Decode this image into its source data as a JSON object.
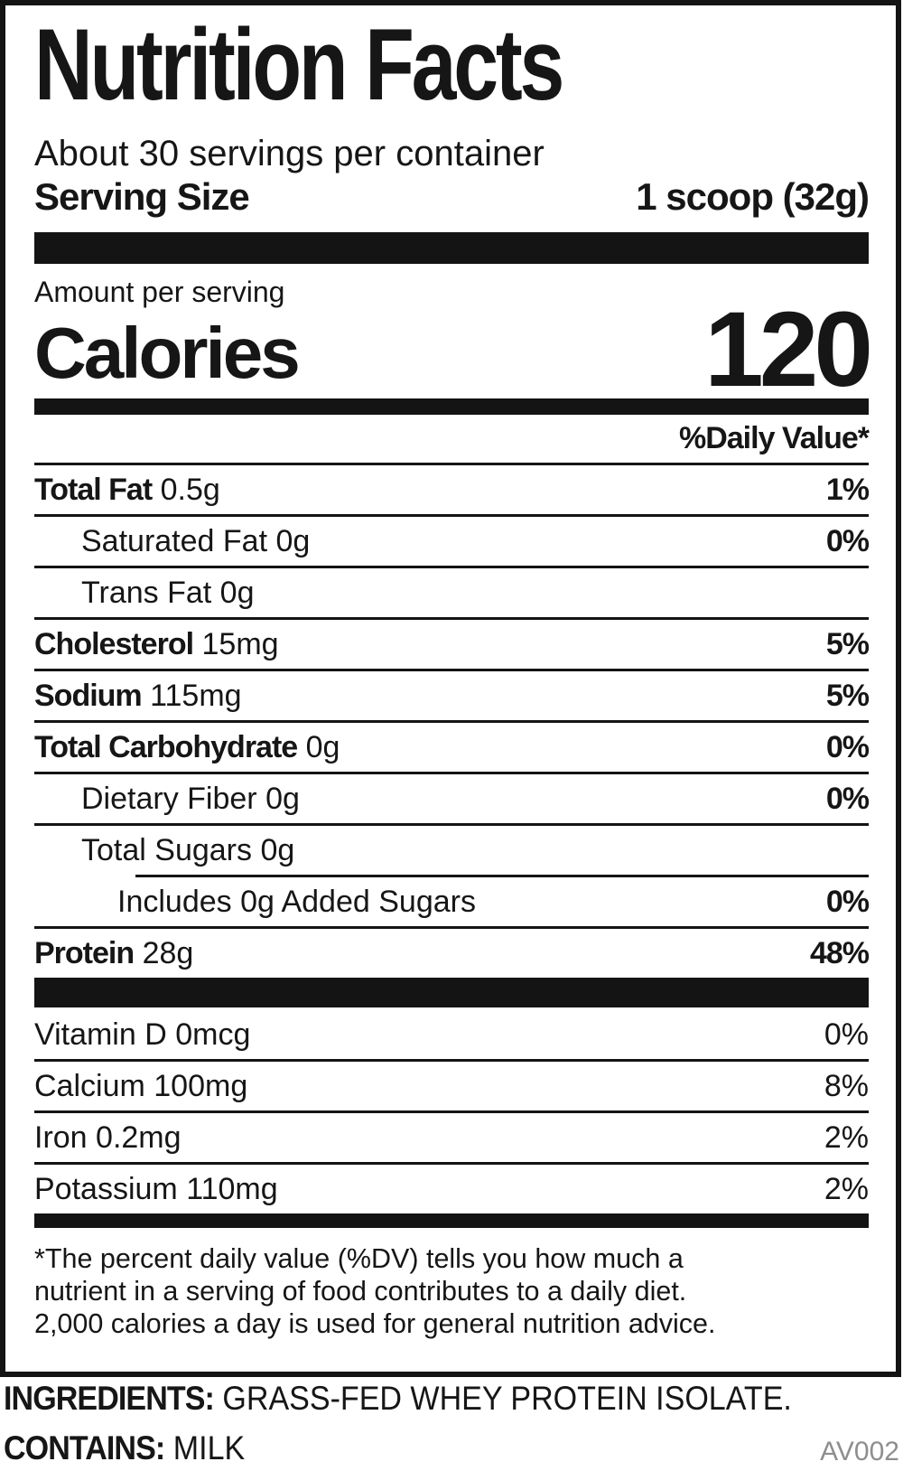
{
  "label": {
    "title": "Nutrition Facts",
    "servings_per_container": "About 30 servings per container",
    "serving_size_label": "Serving Size",
    "serving_size_value": "1 scoop (32g)",
    "amount_per_serving": "Amount per serving",
    "calories_label": "Calories",
    "calories_value": "120",
    "daily_value_header": "%Daily Value*",
    "nutrients": [
      {
        "name": "Total Fat",
        "amount": "0.5g",
        "dv": "1%"
      },
      {
        "name": "Saturated Fat",
        "amount": "0g",
        "dv": "0%"
      },
      {
        "name": "Trans Fat",
        "amount": "0g",
        "dv": ""
      },
      {
        "name": "Cholesterol",
        "amount": "15mg",
        "dv": "5%"
      },
      {
        "name": "Sodium",
        "amount": "115mg",
        "dv": "5%"
      },
      {
        "name": "Total Carbohydrate",
        "amount": "0g",
        "dv": "0%"
      },
      {
        "name": "Dietary Fiber",
        "amount": "0g",
        "dv": "0%"
      },
      {
        "name": "Total Sugars",
        "amount": "0g",
        "dv": ""
      },
      {
        "name": "Includes 0g Added Sugars",
        "amount": "",
        "dv": "0%"
      },
      {
        "name": "Protein",
        "amount": "28g",
        "dv": "48%"
      }
    ],
    "micronutrients": [
      {
        "name": "Vitamin D",
        "amount": "0mcg",
        "dv": "0%"
      },
      {
        "name": "Calcium",
        "amount": "100mg",
        "dv": "8%"
      },
      {
        "name": "Iron",
        "amount": "0.2mg",
        "dv": "2%"
      },
      {
        "name": "Potassium",
        "amount": "110mg",
        "dv": "2%"
      }
    ],
    "footnote_lines": [
      "*The percent daily value (%DV) tells you how much a",
      "nutrient in a serving of food contributes to a daily diet.",
      "2,000 calories a day is used for general nutrition advice."
    ]
  },
  "below_label": {
    "ingredients_label": "INGREDIENTS:",
    "ingredients_value": "GRASS-FED WHEY PROTEIN ISOLATE.",
    "contains_label": "CONTAINS:",
    "contains_value": "MILK",
    "code": "AV002"
  },
  "colors": {
    "ink": "#141414",
    "muted": "#8e8e8e",
    "background": "#ffffff"
  }
}
